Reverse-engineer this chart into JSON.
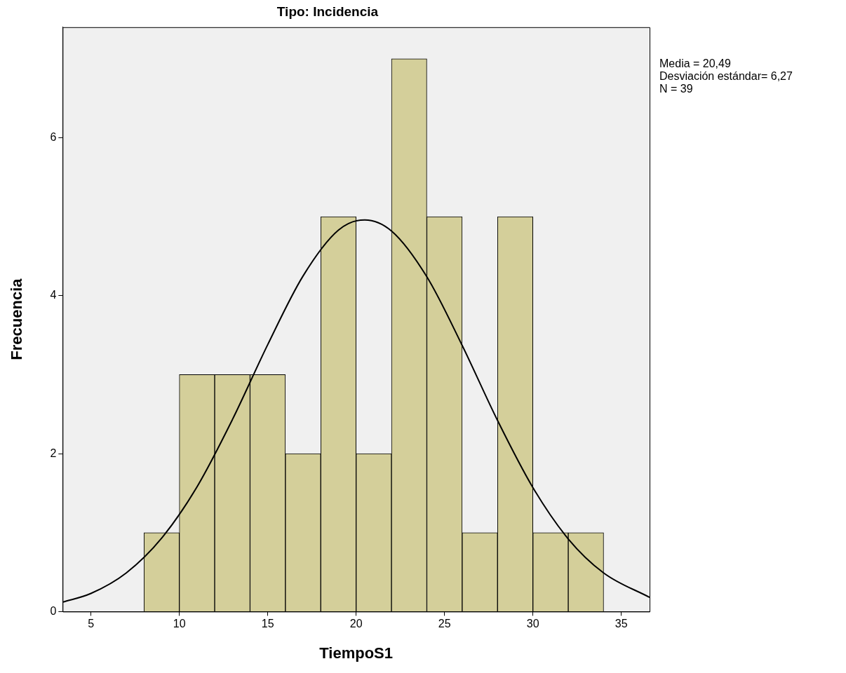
{
  "chart_data": {
    "type": "histogram",
    "title": "Tipo: Incidencia",
    "xlabel": "TiempoS1",
    "ylabel": "Frecuencia",
    "bins": [
      8,
      10,
      12,
      14,
      16,
      18,
      20,
      22,
      24,
      26,
      28,
      30,
      32,
      34
    ],
    "series": [
      {
        "type": "histogram",
        "color": "#d4cf9a",
        "values": [
          1,
          3,
          3,
          3,
          2,
          5,
          2,
          7,
          5,
          1,
          5,
          1,
          1
        ]
      },
      {
        "type": "line",
        "color": "#000000",
        "x": [
          3.4,
          5,
          7,
          9,
          11,
          13,
          15,
          17,
          19,
          20.49,
          22,
          24,
          26,
          28,
          30,
          32,
          34,
          36.6
        ],
        "values": [
          0.12,
          0.23,
          0.49,
          0.93,
          1.58,
          2.43,
          3.38,
          4.25,
          4.83,
          4.96,
          4.82,
          4.24,
          3.37,
          2.42,
          1.57,
          0.92,
          0.49,
          0.18
        ]
      }
    ],
    "xlim": [
      3.4,
      36.6
    ],
    "xticks": [
      5,
      10,
      15,
      20,
      25,
      30,
      35
    ],
    "ylim": [
      0,
      7.4
    ],
    "yticks": [
      0,
      2,
      4,
      6
    ],
    "grid": false,
    "legend": false,
    "marker": "none",
    "annotations": [
      "Media = 20,49",
      "Desviación estándar= 6,27",
      "N = 39"
    ]
  }
}
